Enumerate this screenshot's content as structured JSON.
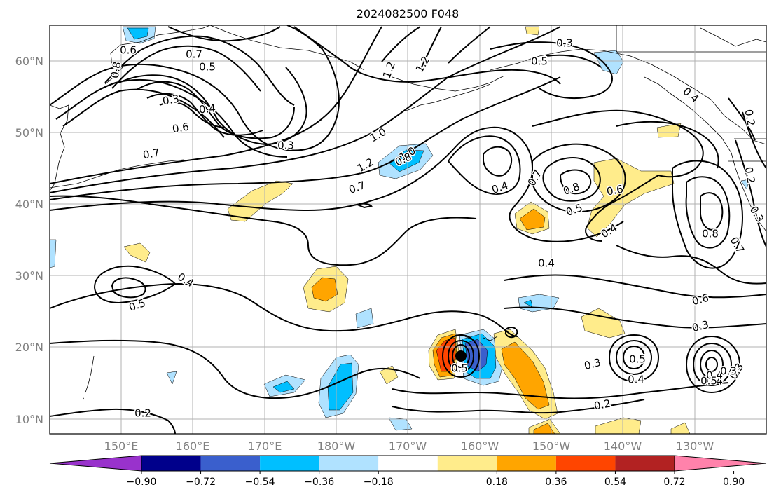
{
  "title": "2024082500 F048",
  "lat_labels": [
    "60°N",
    "50°N",
    "40°N",
    "30°N",
    "20°N",
    "10°N"
  ],
  "lon_labels": [
    "150°E",
    "160°E",
    "170°E",
    "180°W",
    "170°W",
    "160°W",
    "150°W",
    "140°W",
    "130°W"
  ],
  "colorbar": {
    "ticks": [
      "−0.90",
      "−0.72",
      "−0.54",
      "−0.36",
      "−0.18",
      "0.18",
      "0.36",
      "0.54",
      "0.72",
      "0.90"
    ],
    "colors": [
      "#9932cc",
      "#00008b",
      "#3a5fcd",
      "#00bfff",
      "#b0e2ff",
      "#ffffff",
      "#ffec8b",
      "#ffa500",
      "#ff4500",
      "#b22222",
      "#ff82ab"
    ]
  },
  "contour_labels": [
    "0.6",
    "0.7",
    "0.5",
    "0.8",
    "0.3",
    "0.4",
    "0.6",
    "0.7",
    "0.3",
    "1.0",
    "1.2",
    "1.2",
    "1.0",
    "1.2",
    "0.8",
    "0.7",
    "0.3",
    "0.5",
    "0.4",
    "0.2",
    "0.4",
    "0.7",
    "0.8",
    "0.6",
    "0.5",
    "0.4",
    "0.8",
    "0.7",
    "0.3",
    "0.4",
    "0.6",
    "0.3",
    "0.4",
    "0.5",
    "0.5",
    "0.3",
    "0.4",
    "0.2",
    "0.5",
    "0.4",
    "0.2",
    "0.3",
    "0.4",
    "0.5",
    "0.3",
    "0.2"
  ]
}
